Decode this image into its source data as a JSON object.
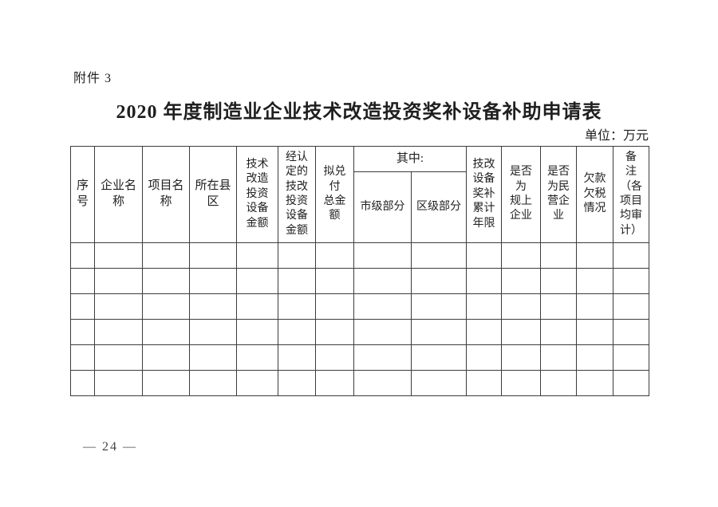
{
  "page": {
    "attachment_label": "附件 3",
    "title": "2020 年度制造业企业技术改造投资奖补设备补助申请表",
    "unit_note": "单位：万元",
    "page_number": "— 24 —"
  },
  "table": {
    "columns": [
      {
        "id": "serial-number",
        "label": "序\n号"
      },
      {
        "id": "enterprise-name",
        "label": "企业名\n称"
      },
      {
        "id": "project-name",
        "label": "项目名\n称"
      },
      {
        "id": "county-district",
        "label": "所在县\n区"
      },
      {
        "id": "tech-transform-equipment-amount",
        "label": "技术\n改造\n投资\n设备\n金额"
      },
      {
        "id": "recognized-tech-equipment-amount",
        "label": "经认\n定的\n技改\n投资\n设备\n金额"
      },
      {
        "id": "proposed-total-payment",
        "label": "拟兑\n付\n总金\n额"
      },
      {
        "id": "subtotal-group",
        "label": "其中:"
      },
      {
        "id": "municipal-part",
        "label": "市级部分"
      },
      {
        "id": "district-part",
        "label": "区级部分"
      },
      {
        "id": "tech-reward-cumulative-years",
        "label": "技改\n设备\n奖补\n累计\n年限"
      },
      {
        "id": "is-above-scale-enterprise",
        "label": "是否\n为\n规上\n企业"
      },
      {
        "id": "is-private-enterprise",
        "label": "是否\n为民\n营企\n业"
      },
      {
        "id": "arrears-tax-status",
        "label": "欠款\n欠税\n情况"
      },
      {
        "id": "remarks",
        "label": "备\n注\n（各\n项目\n均审\n计）"
      }
    ],
    "body_row_count": 6,
    "border_color": "#3c3c3c"
  }
}
